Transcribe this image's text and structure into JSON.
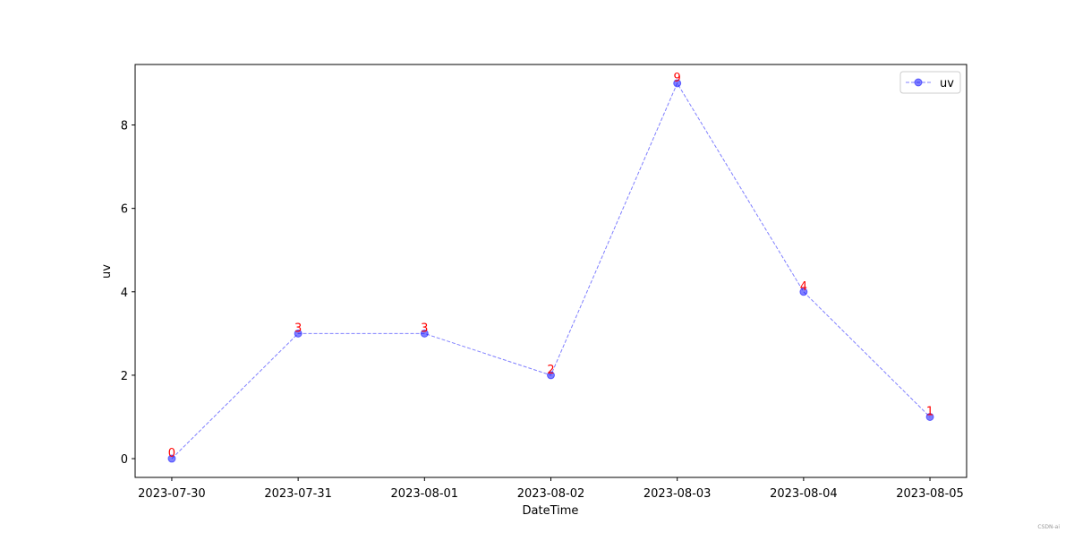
{
  "chart_data": {
    "type": "line",
    "x_label": "DateTime",
    "y_label": "uv",
    "categories": [
      "2023-07-30",
      "2023-07-31",
      "2023-08-01",
      "2023-08-02",
      "2023-08-03",
      "2023-08-04",
      "2023-08-05"
    ],
    "series": [
      {
        "name": "uv",
        "color": "blue",
        "values": [
          0,
          3,
          3,
          2,
          9,
          4,
          1
        ]
      }
    ],
    "data_label_color": "red",
    "ylim": [
      -0.45,
      9.45
    ],
    "yticks": [
      0,
      2,
      4,
      6,
      8
    ],
    "grid": false,
    "legend": "upper right",
    "watermark": "CSDN-ai"
  }
}
